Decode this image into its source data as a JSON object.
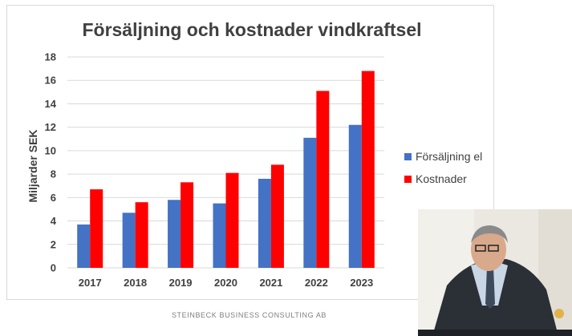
{
  "chart_data": {
    "type": "bar",
    "title": "Försäljning och kostnader vindkraftsel",
    "xlabel": "",
    "ylabel": "Miljarder SEK",
    "categories": [
      "2017",
      "2018",
      "2019",
      "2020",
      "2021",
      "2022",
      "2023"
    ],
    "series": [
      {
        "name": "Försäljning el",
        "color": "#4472c4",
        "values": [
          3.7,
          4.7,
          5.8,
          5.5,
          7.6,
          11.1,
          12.2
        ]
      },
      {
        "name": "Kostnader",
        "color": "#ff0000",
        "values": [
          6.7,
          5.6,
          7.3,
          8.1,
          8.8,
          15.1,
          16.8
        ]
      }
    ],
    "ylim": [
      0,
      18
    ],
    "yticks": [
      0,
      2,
      4,
      6,
      8,
      10,
      12,
      14,
      16,
      18
    ],
    "grid": true,
    "legend_position": "right"
  },
  "footer": {
    "text": "STEINBECK BUSINESS CONSULTING AB"
  },
  "video_overlay": {
    "description_icon": "speaker-video-icon"
  }
}
